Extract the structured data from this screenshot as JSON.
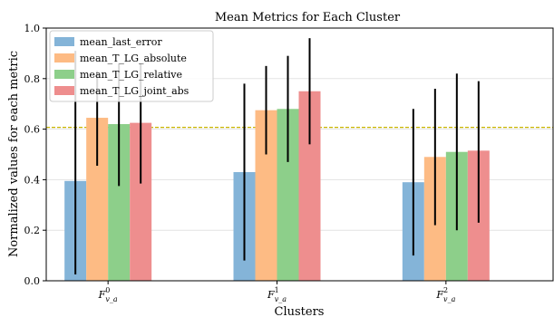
{
  "chart_data": {
    "type": "bar",
    "title": "Mean Metrics for Each Cluster",
    "xlabel": "Clusters",
    "ylabel": "Normalized values for each metric",
    "ylim": [
      0,
      1.0
    ],
    "yticks": [
      0.0,
      0.2,
      0.4,
      0.6,
      0.8,
      1.0
    ],
    "ytick_labels": [
      "0.0",
      "0.2",
      "0.4",
      "0.6",
      "0.8",
      "1.0"
    ],
    "categories": [
      {
        "base": "F",
        "sup": "0",
        "sub": "v_a"
      },
      {
        "base": "F",
        "sup": "1",
        "sub": "v_a"
      },
      {
        "base": "F",
        "sup": "2",
        "sub": "v_a"
      }
    ],
    "series": [
      {
        "name": "mean_last_error",
        "color": "#84b4d8",
        "values": [
          0.395,
          0.43,
          0.39
        ],
        "err_low": [
          0.025,
          0.08,
          0.1
        ],
        "err_high": [
          0.91,
          0.78,
          0.68
        ]
      },
      {
        "name": "mean_T_LG_absolute",
        "color": "#fdbb84",
        "values": [
          0.645,
          0.675,
          0.49
        ],
        "err_low": [
          0.455,
          0.5,
          0.22
        ],
        "err_high": [
          0.83,
          0.85,
          0.76
        ]
      },
      {
        "name": "mean_T_LG_relative",
        "color": "#8dcf8a",
        "values": [
          0.62,
          0.68,
          0.51
        ],
        "err_low": [
          0.375,
          0.47,
          0.2
        ],
        "err_high": [
          0.86,
          0.89,
          0.82
        ]
      },
      {
        "name": "mean_T_LG_joint_abs",
        "color": "#ee8e8e",
        "values": [
          0.625,
          0.75,
          0.515
        ],
        "err_low": [
          0.385,
          0.54,
          0.23
        ],
        "err_high": [
          0.86,
          0.96,
          0.79
        ]
      }
    ],
    "reference_line": {
      "value": 0.607,
      "color": "#c8b400",
      "style": "dashed"
    },
    "grid": "horizontal",
    "legend_placement": "top-left"
  }
}
